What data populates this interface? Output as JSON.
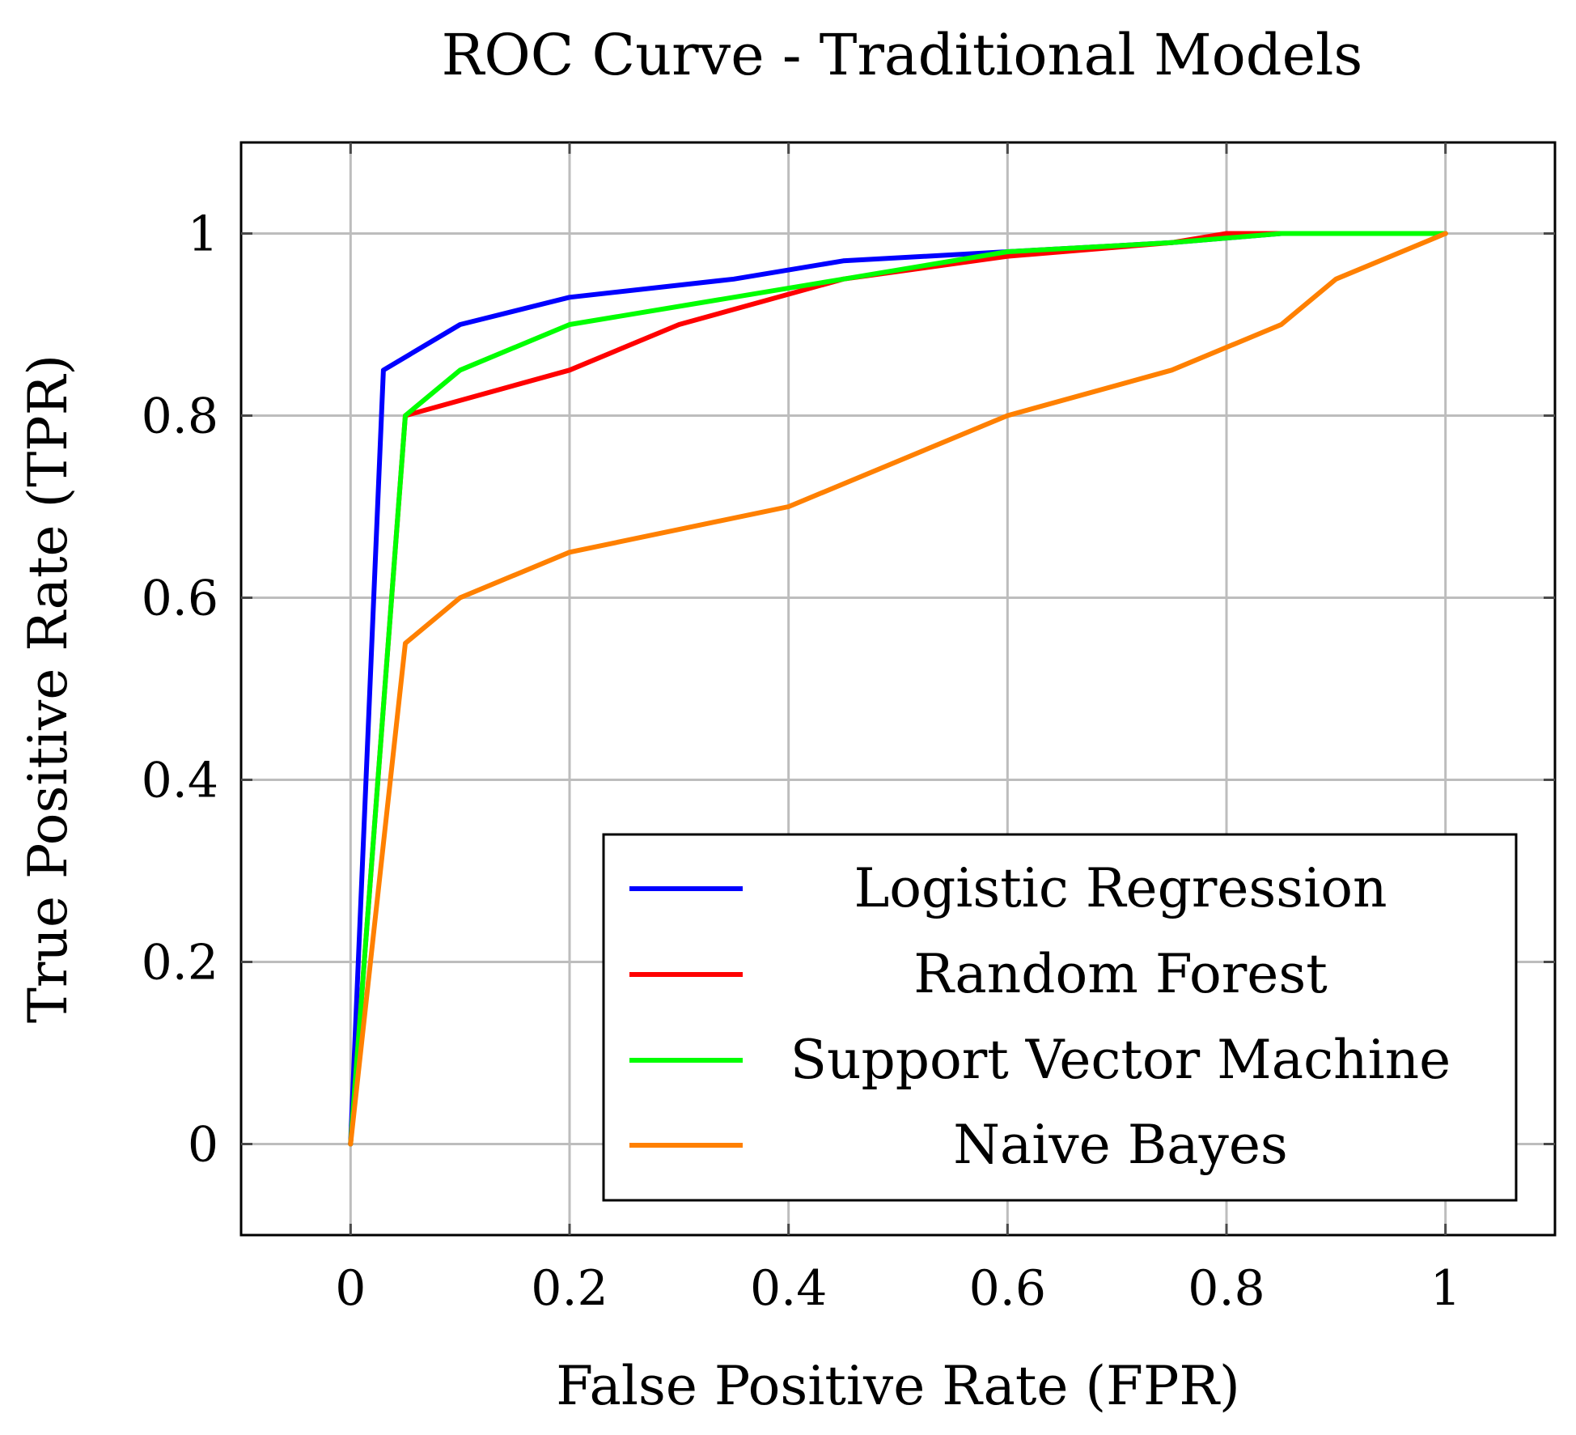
{
  "chart_data": {
    "type": "line",
    "title": "ROC Curve - Traditional Models",
    "xlabel": "False Positive Rate (FPR)",
    "ylabel": "True Positive Rate (TPR)",
    "xlim": [
      -0.1,
      1.1
    ],
    "ylim": [
      -0.1,
      1.1
    ],
    "xticks": [
      0,
      0.2,
      0.4,
      0.6,
      0.8,
      1
    ],
    "xtick_labels": [
      "0",
      "0.2",
      "0.4",
      "0.6",
      "0.8",
      "1"
    ],
    "yticks": [
      0,
      0.2,
      0.4,
      0.6,
      0.8,
      1
    ],
    "ytick_labels": [
      "0",
      "0.2",
      "0.4",
      "0.6",
      "0.8",
      "1"
    ],
    "grid": true,
    "legend_position": "bottom-right",
    "series": [
      {
        "name": "Logistic Regression",
        "color": "#0000ff",
        "x": [
          0,
          0.03,
          0.1,
          0.2,
          0.35,
          0.45,
          0.6,
          0.75,
          0.85,
          1
        ],
        "y": [
          0,
          0.85,
          0.9,
          0.93,
          0.95,
          0.97,
          0.98,
          0.99,
          1.0,
          1.0
        ]
      },
      {
        "name": "Random Forest",
        "color": "#ff0000",
        "x": [
          0,
          0.05,
          0.2,
          0.3,
          0.45,
          0.6,
          0.75,
          0.8,
          1
        ],
        "y": [
          0,
          0.8,
          0.85,
          0.9,
          0.95,
          0.975,
          0.99,
          1.0,
          1.0
        ]
      },
      {
        "name": "Support Vector Machine",
        "color": "#00ff00",
        "x": [
          0,
          0.05,
          0.1,
          0.2,
          0.45,
          0.6,
          0.75,
          0.85,
          1
        ],
        "y": [
          0,
          0.8,
          0.85,
          0.9,
          0.95,
          0.98,
          0.99,
          1.0,
          1.0
        ]
      },
      {
        "name": "Naive Bayes",
        "color": "#ff8000",
        "x": [
          0,
          0.05,
          0.1,
          0.2,
          0.4,
          0.6,
          0.75,
          0.85,
          0.9,
          1
        ],
        "y": [
          0,
          0.55,
          0.6,
          0.65,
          0.7,
          0.8,
          0.85,
          0.9,
          0.95,
          1.0
        ]
      }
    ]
  }
}
